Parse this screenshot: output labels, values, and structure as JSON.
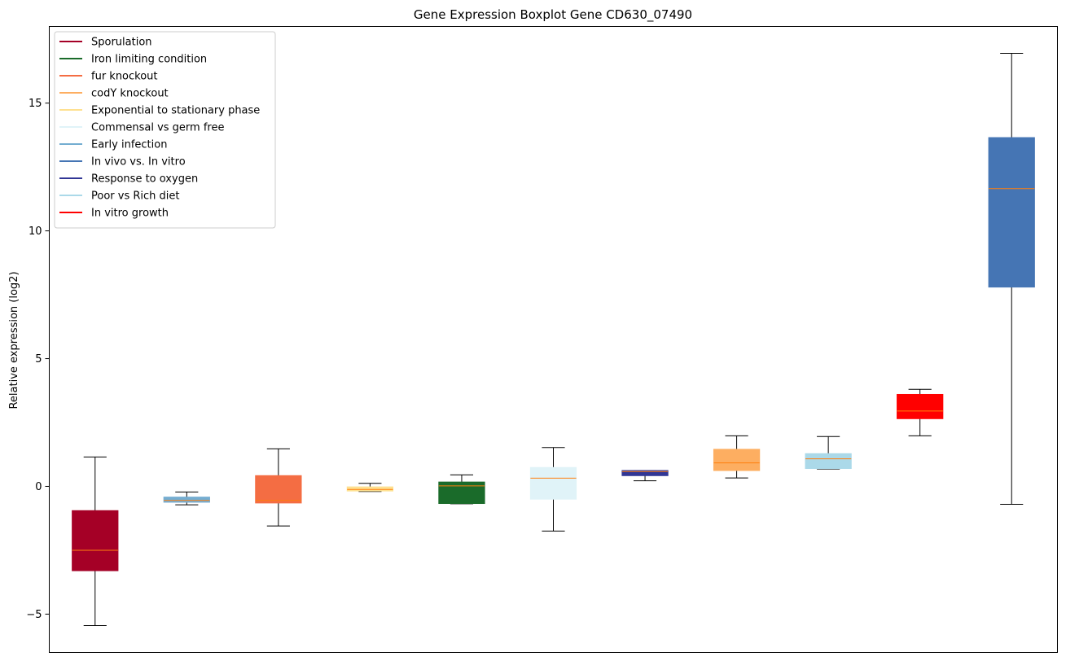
{
  "chart_data": {
    "type": "box",
    "title": "Gene Expression Boxplot Gene CD630_07490",
    "xlabel": "",
    "ylabel": "Relative expression (log2)",
    "ylim": [
      -6.5,
      18
    ],
    "yticks": [
      -5,
      0,
      5,
      10,
      15
    ],
    "ytick_labels": [
      "−5",
      "0",
      "5",
      "10",
      "15"
    ],
    "grid": false,
    "legend_position": "top-left",
    "legend": [
      {
        "label": "Sporulation",
        "color": "#a50026"
      },
      {
        "label": "Iron limiting condition",
        "color": "#1a6b2a"
      },
      {
        "label": "fur knockout",
        "color": "#f46d43"
      },
      {
        "label": "codY knockout",
        "color": "#fdae61"
      },
      {
        "label": "Exponential to stationary phase",
        "color": "#fee090"
      },
      {
        "label": "Commensal vs germ free",
        "color": "#e0f3f8"
      },
      {
        "label": "Early infection",
        "color": "#74add1"
      },
      {
        "label": "In vivo vs. In vitro",
        "color": "#4575b4"
      },
      {
        "label": "Response to oxygen",
        "color": "#313695"
      },
      {
        "label": "Poor vs Rich diet",
        "color": "#abd9e9"
      },
      {
        "label": "In vitro growth",
        "color": "#ff0000"
      }
    ],
    "boxes": [
      {
        "series": "Sporulation",
        "color": "#a50026",
        "whisker_low": -5.45,
        "q1": -3.3,
        "median": -2.5,
        "q3": -0.95,
        "whisker_high": 1.15
      },
      {
        "series": "Early infection",
        "color": "#74add1",
        "whisker_low": -0.72,
        "q1": -0.62,
        "median": -0.55,
        "q3": -0.42,
        "whisker_high": -0.22
      },
      {
        "series": "fur knockout",
        "color": "#f46d43",
        "whisker_low": -1.55,
        "q1": -0.65,
        "median": -0.55,
        "q3": 0.42,
        "whisker_high": 1.47
      },
      {
        "series": "Exponential to stationary phase",
        "color": "#fee090",
        "whisker_low": -0.2,
        "q1": -0.18,
        "median": -0.12,
        "q3": -0.02,
        "whisker_high": 0.12
      },
      {
        "series": "Iron limiting condition",
        "color": "#1a6b2a",
        "whisker_low": -0.68,
        "q1": -0.67,
        "median": 0.02,
        "q3": 0.17,
        "whisker_high": 0.45
      },
      {
        "series": "Commensal vs germ free",
        "color": "#e0f3f8",
        "whisker_low": -1.75,
        "q1": -0.5,
        "median": 0.32,
        "q3": 0.74,
        "whisker_high": 1.52
      },
      {
        "series": "Response to oxygen",
        "color": "#313695",
        "whisker_low": 0.22,
        "q1": 0.42,
        "median": 0.58,
        "q3": 0.62,
        "whisker_high": 0.62
      },
      {
        "series": "codY knockout",
        "color": "#fdae61",
        "whisker_low": 0.33,
        "q1": 0.62,
        "median": 0.92,
        "q3": 1.45,
        "whisker_high": 1.98
      },
      {
        "series": "Poor vs Rich diet",
        "color": "#abd9e9",
        "whisker_low": 0.68,
        "q1": 0.7,
        "median": 1.08,
        "q3": 1.28,
        "whisker_high": 1.95
      },
      {
        "series": "In vitro growth",
        "color": "#ff0000",
        "whisker_low": 1.98,
        "q1": 2.65,
        "median": 2.95,
        "q3": 3.6,
        "whisker_high": 3.8
      },
      {
        "series": "In vivo vs. In vitro",
        "color": "#4575b4",
        "whisker_low": -0.7,
        "q1": 7.8,
        "median": 11.65,
        "q3": 13.65,
        "whisker_high": 16.95
      }
    ],
    "median_color": "#ff7f0e",
    "whisker_color": "#000000"
  }
}
